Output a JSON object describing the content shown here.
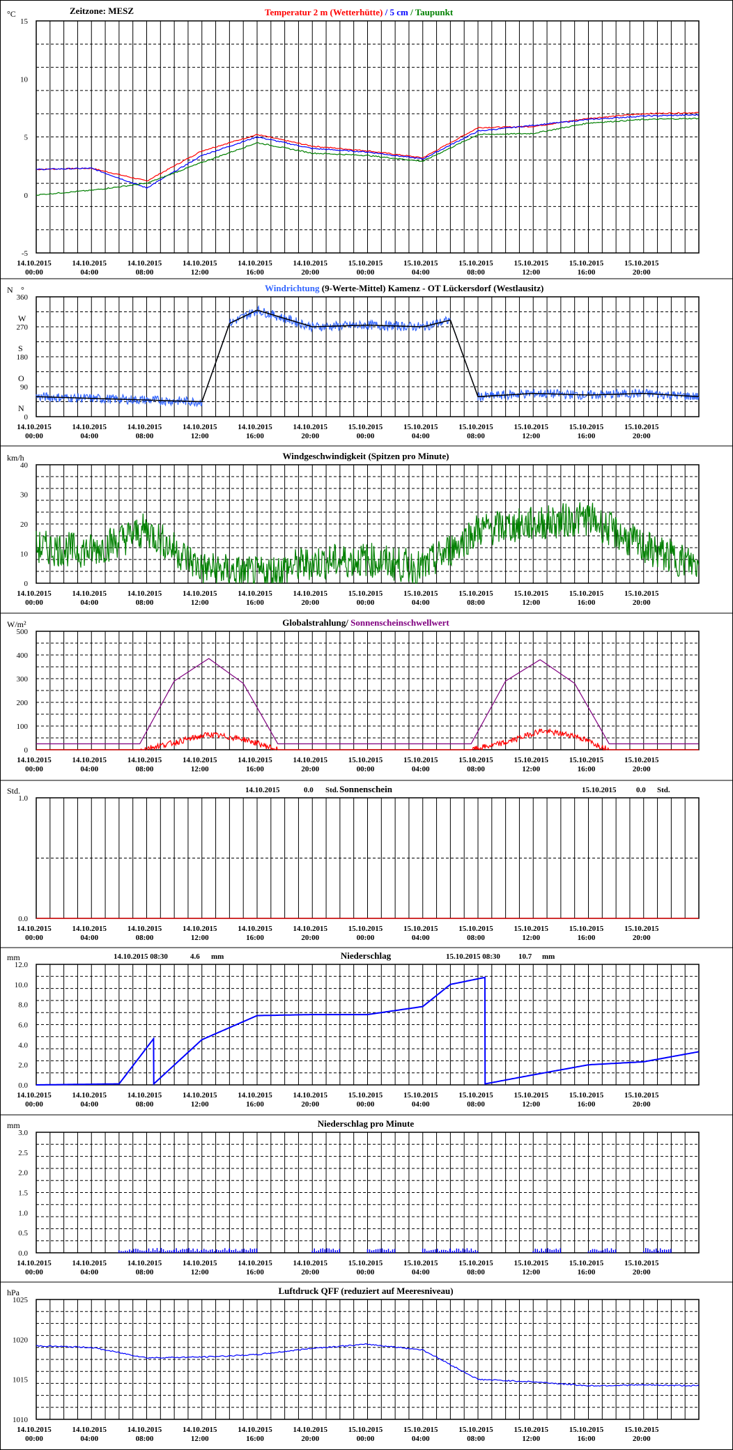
{
  "date_labels": [
    "14.10.2015",
    "14.10.2015",
    "14.10.2015",
    "14.10.2015",
    "14.10.2015",
    "14.10.2015",
    "15.10.2015",
    "15.10.2015",
    "15.10.2015",
    "15.10.2015",
    "15.10.2015",
    "15.10.2015"
  ],
  "time_labels": [
    "00:00",
    "04:00",
    "08:00",
    "12:00",
    "16:00",
    "20:00",
    "00:00",
    "04:00",
    "08:00",
    "12:00",
    "16:00",
    "20:00"
  ],
  "panels": [
    {
      "id": "temperature",
      "unit": "°C",
      "header_left": "Zeitzone: MESZ",
      "title_parts": [
        {
          "text": "Temperatur 2 m (Wetterhütte)",
          "color": "#ff0000"
        },
        {
          "text": "  /  ",
          "color": "#0000ff"
        },
        {
          "text": "5 cm",
          "color": "#0000ff"
        },
        {
          "text": " / ",
          "color": "#008000"
        },
        {
          "text": "Taupunkt",
          "color": "#008000"
        }
      ],
      "yticks": [
        "15",
        "10",
        "5",
        "0",
        "-5"
      ]
    },
    {
      "id": "wind-direction",
      "unit": "N",
      "unit_right": "°",
      "title_parts": [
        {
          "text": "Windrichtung",
          "color": "#3366ff"
        },
        {
          "text": " (9-Werte-Mittel)",
          "color": "#000000"
        },
        {
          "text": "            Kamenz - OT Lückersdorf (Westlausitz)",
          "color": "#000000"
        }
      ],
      "yticks": [
        "360",
        "270",
        "180",
        "90",
        "0"
      ],
      "direction_labels": [
        "W",
        "S",
        "O",
        "N"
      ]
    },
    {
      "id": "wind-speed",
      "unit": "km/h",
      "title_parts": [
        {
          "text": "Windgeschwindigkeit (Spitzen pro Minute)",
          "color": "#000000"
        }
      ],
      "yticks": [
        "40",
        "30",
        "20",
        "10",
        "0"
      ]
    },
    {
      "id": "radiation",
      "unit": "W/m²",
      "title_parts": [
        {
          "text": "Globalstrahlung/ ",
          "color": "#000000"
        },
        {
          "text": "Sonnenscheinschwellwert",
          "color": "#800080"
        }
      ],
      "yticks": [
        "500",
        "400",
        "300",
        "200",
        "100",
        "0"
      ]
    },
    {
      "id": "sunshine",
      "unit": "Std.",
      "title_parts": [
        {
          "text": "Sonnenschein",
          "color": "#000000"
        }
      ],
      "yticks": [
        "1.0",
        "0.0"
      ],
      "day1": {
        "date": "14.10.2015",
        "value": "0.0",
        "unit": "Std."
      },
      "day2": {
        "date": "15.10.2015",
        "value": "0.0",
        "unit": "Std."
      }
    },
    {
      "id": "precipitation",
      "unit": "mm",
      "title_parts": [
        {
          "text": "Niederschlag",
          "color": "#000000"
        }
      ],
      "yticks": [
        "12.0",
        "10.0",
        "8.0",
        "6.0",
        "4.0",
        "2.0",
        "0.0"
      ],
      "day1": {
        "date": "14.10.2015 08:30",
        "value": "4.6",
        "unit": "mm"
      },
      "day2": {
        "date": "15.10.2015 08:30",
        "value": "10.7",
        "unit": "mm"
      }
    },
    {
      "id": "precip-minute",
      "unit": "mm",
      "title_parts": [
        {
          "text": "Niederschlag pro Minute",
          "color": "#000000"
        }
      ],
      "yticks": [
        "3.0",
        "2.5",
        "2.0",
        "1.5",
        "1.0",
        "0.5",
        "0.0"
      ]
    },
    {
      "id": "pressure",
      "unit": "hPa",
      "title_parts": [
        {
          "text": "Luftdruck QFF (reduziert auf Meeresniveau)",
          "color": "#000000"
        }
      ],
      "yticks": [
        "1025",
        "1020",
        "1015",
        "1010"
      ]
    }
  ],
  "chart_data": [
    {
      "type": "line",
      "title": "Temperatur 2 m (Wetterhütte) / 5 cm / Taupunkt",
      "ylabel": "°C",
      "ylim": [
        -5,
        15
      ],
      "x": [
        "14.10.2015 00:00",
        "14.10.2015 04:00",
        "14.10.2015 08:00",
        "14.10.2015 12:00",
        "14.10.2015 16:00",
        "14.10.2015 20:00",
        "15.10.2015 00:00",
        "15.10.2015 04:00",
        "15.10.2015 08:00",
        "15.10.2015 12:00",
        "15.10.2015 16:00",
        "15.10.2015 20:00",
        "15.10.2015 23:59"
      ],
      "series": [
        {
          "name": "Temperatur 2 m (Wetterhütte)",
          "color": "#ff0000",
          "values": [
            2.2,
            2.3,
            1.2,
            3.8,
            5.2,
            4.2,
            3.8,
            3.2,
            5.8,
            5.9,
            6.6,
            7.0,
            7.1
          ]
        },
        {
          "name": "5 cm",
          "color": "#0000ff",
          "values": [
            2.2,
            2.3,
            0.6,
            3.4,
            5.0,
            4.0,
            3.7,
            3.1,
            5.5,
            6.0,
            6.5,
            6.8,
            6.9
          ]
        },
        {
          "name": "Taupunkt",
          "color": "#008000",
          "values": [
            0.0,
            0.4,
            1.0,
            2.8,
            4.5,
            3.6,
            3.4,
            2.9,
            5.2,
            5.3,
            6.2,
            6.5,
            6.6
          ]
        }
      ]
    },
    {
      "type": "line",
      "title": "Windrichtung (9-Werte-Mittel)",
      "ylabel": "°",
      "ylim": [
        0,
        360
      ],
      "x": [
        "14.10.2015 00:00",
        "14.10.2015 04:00",
        "14.10.2015 08:00",
        "14.10.2015 12:00",
        "14.10.2015 14:00",
        "14.10.2015 16:00",
        "14.10.2015 20:00",
        "15.10.2015 00:00",
        "15.10.2015 04:00",
        "15.10.2015 06:00",
        "15.10.2015 08:00",
        "15.10.2015 12:00",
        "15.10.2015 16:00",
        "15.10.2015 20:00",
        "15.10.2015 23:59"
      ],
      "series": [
        {
          "name": "Windrichtung",
          "color": "#3366ff",
          "values": [
            60,
            55,
            50,
            45,
            280,
            320,
            270,
            275,
            270,
            290,
            60,
            70,
            65,
            70,
            60
          ]
        }
      ]
    },
    {
      "type": "line",
      "title": "Windgeschwindigkeit (Spitzen pro Minute)",
      "ylabel": "km/h",
      "ylim": [
        0,
        40
      ],
      "x": [
        "14.10.2015 00:00",
        "14.10.2015 04:00",
        "14.10.2015 08:00",
        "14.10.2015 12:00",
        "14.10.2015 16:00",
        "14.10.2015 20:00",
        "15.10.2015 00:00",
        "15.10.2015 04:00",
        "15.10.2015 08:00",
        "15.10.2015 12:00",
        "15.10.2015 16:00",
        "15.10.2015 20:00",
        "15.10.2015 23:59"
      ],
      "series": [
        {
          "name": "Windgeschwindigkeit",
          "color": "#008000",
          "values": [
            12,
            11,
            18,
            5,
            3,
            7,
            8,
            5,
            18,
            20,
            22,
            12,
            6
          ]
        }
      ]
    },
    {
      "type": "line",
      "title": "Globalstrahlung/ Sonnenscheinschwellwert",
      "ylabel": "W/m²",
      "ylim": [
        0,
        500
      ],
      "x": [
        "14.10.2015 00:00",
        "14.10.2015 04:00",
        "14.10.2015 07:30",
        "14.10.2015 10:00",
        "14.10.2015 12:30",
        "14.10.2015 15:00",
        "14.10.2015 17:30",
        "14.10.2015 20:00",
        "15.10.2015 00:00",
        "15.10.2015 04:00",
        "15.10.2015 07:30",
        "15.10.2015 10:00",
        "15.10.2015 12:30",
        "15.10.2015 15:00",
        "15.10.2015 17:30",
        "15.10.2015 20:00",
        "15.10.2015 23:59"
      ],
      "series": [
        {
          "name": "Globalstrahlung",
          "color": "#ff0000",
          "values": [
            0,
            0,
            0,
            30,
            65,
            45,
            0,
            0,
            0,
            0,
            0,
            30,
            80,
            60,
            0,
            0,
            0
          ]
        },
        {
          "name": "Sonnenscheinschwellwert",
          "color": "#800080",
          "values": [
            25,
            25,
            25,
            290,
            385,
            280,
            25,
            25,
            25,
            25,
            25,
            290,
            380,
            280,
            25,
            25,
            25
          ]
        }
      ]
    },
    {
      "type": "line",
      "title": "Sonnenschein",
      "ylabel": "Std.",
      "ylim": [
        0,
        1
      ],
      "x": [
        "14.10.2015 00:00",
        "15.10.2015 23:59"
      ],
      "series": [
        {
          "name": "Sonnenschein",
          "color": "#ff0000",
          "values": [
            0,
            0
          ]
        }
      ]
    },
    {
      "type": "line",
      "title": "Niederschlag",
      "ylabel": "mm",
      "ylim": [
        0,
        12
      ],
      "x": [
        "14.10.2015 00:00",
        "14.10.2015 06:00",
        "14.10.2015 08:30",
        "14.10.2015 08:31",
        "14.10.2015 12:00",
        "14.10.2015 16:00",
        "14.10.2015 20:00",
        "15.10.2015 00:00",
        "15.10.2015 04:00",
        "15.10.2015 06:00",
        "15.10.2015 08:30",
        "15.10.2015 08:31",
        "15.10.2015 12:00",
        "15.10.2015 16:00",
        "15.10.2015 20:00",
        "15.10.2015 23:59"
      ],
      "series": [
        {
          "name": "Niederschlag",
          "color": "#0000ff",
          "values": [
            0,
            0.1,
            4.6,
            0.1,
            4.5,
            6.9,
            7.0,
            7.0,
            7.8,
            10.0,
            10.7,
            0.1,
            1.0,
            2.0,
            2.3,
            3.3
          ]
        }
      ]
    },
    {
      "type": "bar",
      "title": "Niederschlag pro Minute",
      "ylabel": "mm",
      "ylim": [
        0,
        3
      ],
      "x": [
        "14.10.2015 06:00",
        "14.10.2015 08:00",
        "14.10.2015 10:00",
        "14.10.2015 12:00",
        "14.10.2015 14:00",
        "14.10.2015 20:00",
        "15.10.2015 00:00",
        "15.10.2015 04:00",
        "15.10.2015 06:00",
        "15.10.2015 12:00",
        "15.10.2015 16:00",
        "15.10.2015 20:00"
      ],
      "series": [
        {
          "name": "Niederschlag pro Minute",
          "color": "#0000ff",
          "values": [
            0.1,
            0.1,
            0.1,
            0.1,
            0.1,
            0.1,
            0.1,
            0.1,
            0.1,
            0.1,
            0.1,
            0.1
          ]
        }
      ]
    },
    {
      "type": "line",
      "title": "Luftdruck QFF (reduziert auf Meeresniveau)",
      "ylabel": "hPa",
      "ylim": [
        1010,
        1025
      ],
      "x": [
        "14.10.2015 00:00",
        "14.10.2015 04:00",
        "14.10.2015 08:00",
        "14.10.2015 12:00",
        "14.10.2015 16:00",
        "14.10.2015 20:00",
        "15.10.2015 00:00",
        "15.10.2015 04:00",
        "15.10.2015 08:00",
        "15.10.2015 12:00",
        "15.10.2015 16:00",
        "15.10.2015 20:00",
        "15.10.2015 23:59"
      ],
      "series": [
        {
          "name": "Luftdruck QFF",
          "color": "#0000ff",
          "values": [
            1019.2,
            1019.0,
            1017.7,
            1017.8,
            1018.1,
            1018.9,
            1019.4,
            1018.7,
            1015.0,
            1014.7,
            1014.2,
            1014.3,
            1014.2
          ]
        }
      ]
    }
  ]
}
